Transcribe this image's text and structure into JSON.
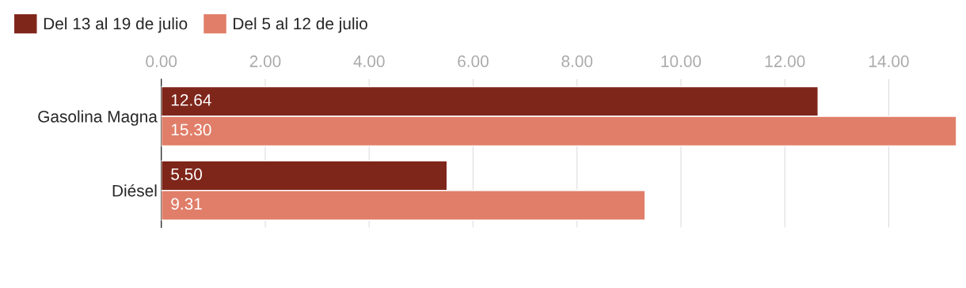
{
  "chart_data": {
    "type": "bar",
    "orientation": "horizontal",
    "categories": [
      "Gasolina Magna",
      "Diésel"
    ],
    "series": [
      {
        "name": "Del 13 al 19 de julio",
        "color": "#7f261b",
        "values": [
          12.64,
          5.5
        ],
        "value_labels": [
          "12.64",
          "5.50"
        ]
      },
      {
        "name": "Del 5 al 12 de julio",
        "color": "#e07e69",
        "values": [
          15.3,
          9.31
        ],
        "value_labels": [
          "15.30",
          "9.31"
        ]
      }
    ],
    "xlim": [
      0,
      15.3
    ],
    "xticks": [
      {
        "value": 0,
        "label": "0.00"
      },
      {
        "value": 2,
        "label": "2.00"
      },
      {
        "value": 4,
        "label": "4.00"
      },
      {
        "value": 6,
        "label": "6.00"
      },
      {
        "value": 8,
        "label": "8.00"
      },
      {
        "value": 10,
        "label": "10.00"
      },
      {
        "value": 12,
        "label": "12.00"
      },
      {
        "value": 14,
        "label": "14.00"
      }
    ],
    "grid": "x",
    "legend": "top left"
  }
}
